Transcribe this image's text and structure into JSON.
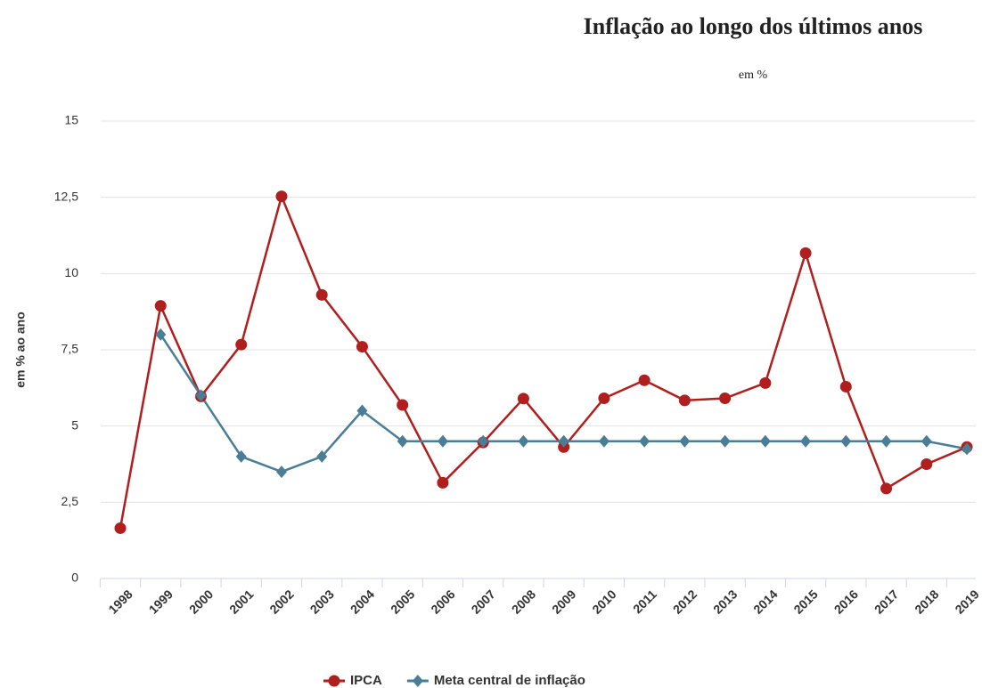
{
  "chart_data": {
    "type": "line",
    "title": "Inflação ao longo dos últimos anos",
    "subtitle": "em %",
    "y_label": "em % ao ano",
    "categories": [
      "1998",
      "1999",
      "2000",
      "2001",
      "2002",
      "2003",
      "2004",
      "2005",
      "2006",
      "2007",
      "2008",
      "2009",
      "2010",
      "2011",
      "2012",
      "2013",
      "2014",
      "2015",
      "2016",
      "2017",
      "2018",
      "2019"
    ],
    "series": [
      {
        "name": "IPCA",
        "color": "#b01e1e",
        "marker": "circle",
        "values": [
          1.65,
          8.94,
          5.97,
          7.67,
          12.53,
          9.3,
          7.6,
          5.69,
          3.14,
          4.46,
          5.9,
          4.31,
          5.91,
          6.5,
          5.84,
          5.91,
          6.41,
          10.67,
          6.29,
          2.95,
          3.75,
          4.31
        ]
      },
      {
        "name": "Meta central de inflação",
        "color": "#4a7d96",
        "marker": "diamond",
        "values": [
          null,
          8,
          6,
          4,
          3.5,
          4,
          5.5,
          4.5,
          4.5,
          4.5,
          4.5,
          4.5,
          4.5,
          4.5,
          4.5,
          4.5,
          4.5,
          4.5,
          4.5,
          4.5,
          4.5,
          4.25
        ]
      }
    ],
    "ylim": [
      0,
      15
    ],
    "yticks": [
      0,
      {
        "value": 2.5,
        "label": "2,5"
      },
      5,
      {
        "value": 7.5,
        "label": "7,5"
      },
      10,
      {
        "value": 12.5,
        "label": "12,5"
      },
      15
    ],
    "grid": true,
    "legend": "bottom"
  }
}
